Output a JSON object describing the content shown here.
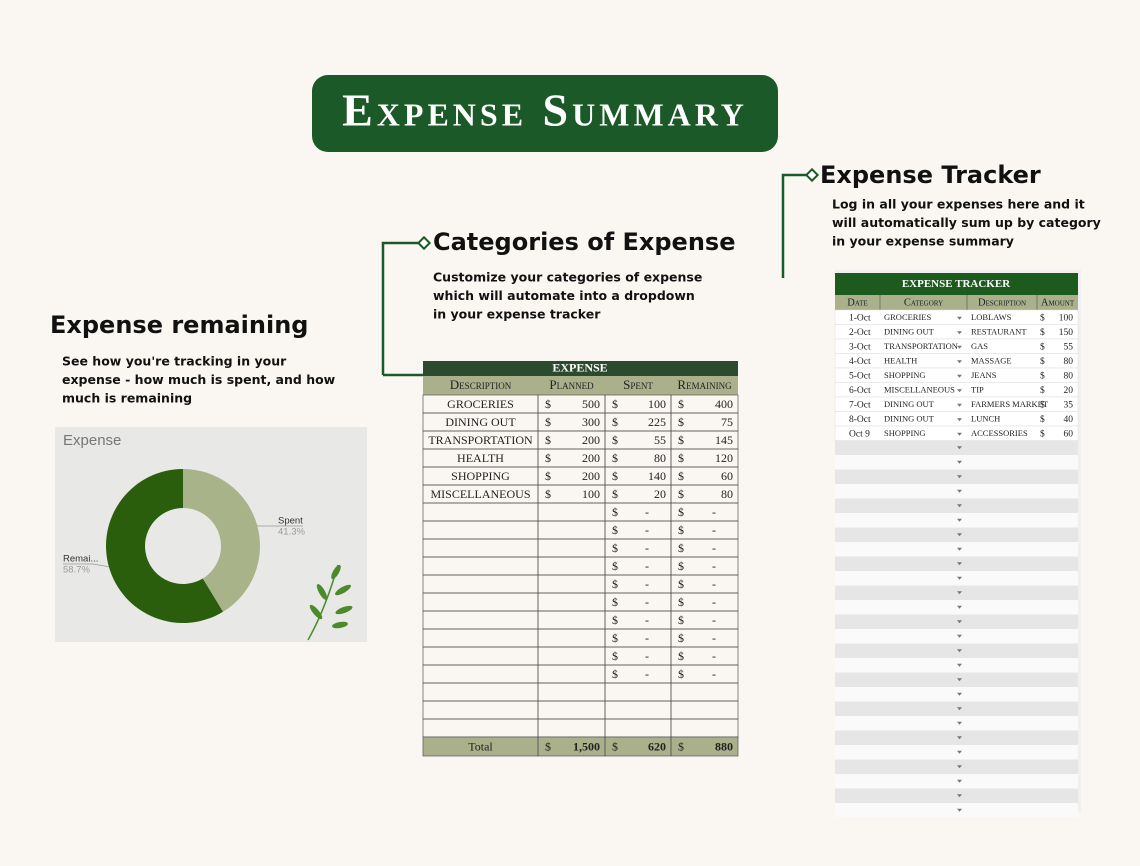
{
  "header": {
    "title": "Expense Summary"
  },
  "remaining_section": {
    "title": "Expense remaining",
    "lines": [
      "See how you're tracking in your",
      "expense - how much is spent, and how",
      "much is remaining"
    ]
  },
  "categories_section": {
    "title": "Categories of Expense",
    "lines": [
      "Customize your categories of expense",
      "which will automate into a dropdown",
      "in your expense tracker"
    ]
  },
  "tracker_section": {
    "title": "Expense Tracker",
    "lines": [
      "Log in all your expenses here and it",
      "will automatically sum up by category",
      "in your expense summary"
    ]
  },
  "donut": {
    "type": "pie",
    "title": "Expense",
    "categories": [
      "Spent",
      "Remai..."
    ],
    "values": [
      41.3,
      58.7
    ],
    "value_labels": [
      "41.3%",
      "58.7%"
    ],
    "colors": [
      "#a9b38a",
      "#2a5e0c"
    ]
  },
  "expense_table": {
    "title": "EXPENSE",
    "currency": "$",
    "columns": [
      "Description",
      "Planned",
      "Spent",
      "Remaining"
    ],
    "rows": [
      [
        "GROCERIES",
        "500",
        "100",
        "400"
      ],
      [
        "DINING OUT",
        "300",
        "225",
        "75"
      ],
      [
        "TRANSPORTATION",
        "200",
        "55",
        "145"
      ],
      [
        "HEALTH",
        "200",
        "80",
        "120"
      ],
      [
        "SHOPPING",
        "200",
        "140",
        "60"
      ],
      [
        "MISCELLANEOUS",
        "100",
        "20",
        "80"
      ],
      [
        null,
        null,
        "-",
        "-"
      ],
      [
        null,
        null,
        "-",
        "-"
      ],
      [
        null,
        null,
        "-",
        "-"
      ],
      [
        null,
        null,
        "-",
        "-"
      ],
      [
        null,
        null,
        "-",
        "-"
      ],
      [
        null,
        null,
        "-",
        "-"
      ],
      [
        null,
        null,
        "-",
        "-"
      ],
      [
        null,
        null,
        "-",
        "-"
      ],
      [
        null,
        null,
        "-",
        "-"
      ],
      [
        null,
        null,
        "-",
        "-"
      ],
      [
        null,
        null,
        null,
        null
      ],
      [
        null,
        null,
        null,
        null
      ],
      [
        null,
        null,
        null,
        null
      ]
    ],
    "total": [
      "Total",
      "1,500",
      "620",
      "880"
    ]
  },
  "tracker_table": {
    "title": "EXPENSE TRACKER",
    "currency": "$",
    "columns": [
      "Date",
      "Category",
      "Description",
      "Amount"
    ],
    "rows": [
      [
        "1-Oct",
        "GROCERIES",
        "LOBLAWS",
        "100"
      ],
      [
        "2-Oct",
        "DINING OUT",
        "RESTAURANT",
        "150"
      ],
      [
        "3-Oct",
        "TRANSPORTATION",
        "GAS",
        "55"
      ],
      [
        "4-Oct",
        "HEALTH",
        "MASSAGE",
        "80"
      ],
      [
        "5-Oct",
        "SHOPPING",
        "JEANS",
        "80"
      ],
      [
        "6-Oct",
        "MISCELLANEOUS",
        "TIP",
        "20"
      ],
      [
        "7-Oct",
        "DINING OUT",
        "FARMERS MARKET",
        "35"
      ],
      [
        "8-Oct",
        "DINING OUT",
        "LUNCH",
        "40"
      ],
      [
        "Oct 9",
        "SHOPPING",
        "ACCESSORIES",
        "60"
      ]
    ]
  }
}
